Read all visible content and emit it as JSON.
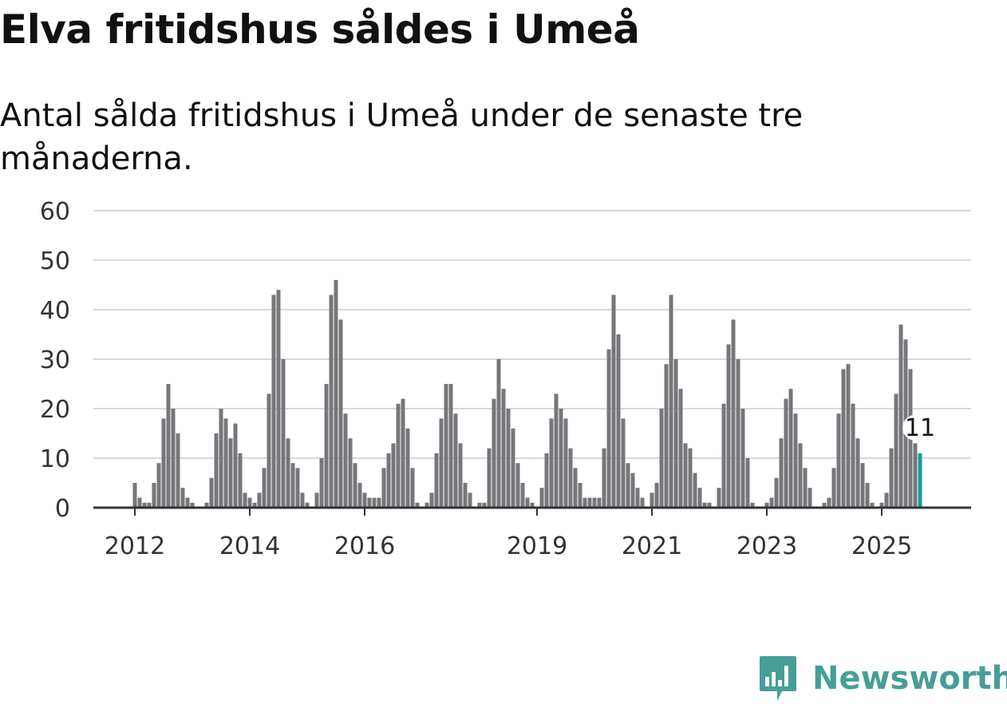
{
  "header": {
    "title": "Elva fritidshus såldes i Umeå",
    "subtitle": "Antal sålda fritidshus i Umeå under de senaste tre månaderna."
  },
  "brand": {
    "name": "Newsworthy",
    "color": "#479e98",
    "icon": "newsworthy-chart-icon"
  },
  "colors": {
    "bar": "#76767b",
    "highlight": "#1a9e92",
    "grid": "#d9d9d9",
    "axis": "#333333"
  },
  "chart_data": {
    "type": "bar",
    "start": "2011-01",
    "end": "2025-09",
    "ylim": [
      0,
      60
    ],
    "yticks": [
      0,
      10,
      20,
      30,
      40,
      50,
      60
    ],
    "xticks": [
      {
        "label": "2012",
        "date": "2012-01"
      },
      {
        "label": "2014",
        "date": "2014-01"
      },
      {
        "label": "2016",
        "date": "2016-01"
      },
      {
        "label": "2019",
        "date": "2019-01"
      },
      {
        "label": "2021",
        "date": "2021-01"
      },
      {
        "label": "2023",
        "date": "2023-01"
      },
      {
        "label": "2025",
        "date": "2025-01"
      }
    ],
    "grid": true,
    "values": [
      0,
      0,
      0,
      0,
      0,
      0,
      0,
      0,
      0,
      0,
      0,
      0,
      5,
      2,
      1,
      1,
      5,
      9,
      18,
      25,
      20,
      15,
      4,
      2,
      1,
      0,
      0,
      1,
      6,
      15,
      20,
      18,
      14,
      17,
      11,
      3,
      2,
      1,
      3,
      8,
      23,
      43,
      44,
      30,
      14,
      9,
      8,
      3,
      1,
      0,
      3,
      10,
      25,
      43,
      46,
      38,
      19,
      14,
      9,
      5,
      3,
      2,
      2,
      2,
      8,
      11,
      13,
      21,
      22,
      16,
      8,
      1,
      0,
      1,
      3,
      11,
      18,
      25,
      25,
      19,
      13,
      5,
      3,
      0,
      1,
      1,
      12,
      22,
      30,
      24,
      20,
      16,
      9,
      5,
      2,
      1,
      0,
      4,
      11,
      18,
      23,
      20,
      18,
      12,
      8,
      5,
      2,
      2,
      2,
      2,
      12,
      32,
      43,
      35,
      18,
      9,
      7,
      4,
      2,
      0,
      3,
      5,
      20,
      29,
      43,
      30,
      24,
      13,
      12,
      7,
      4,
      1,
      1,
      0,
      4,
      21,
      33,
      38,
      30,
      20,
      10,
      1,
      0,
      0,
      1,
      2,
      6,
      14,
      22,
      24,
      19,
      13,
      8,
      4,
      0,
      0,
      1,
      2,
      8,
      19,
      28,
      29,
      21,
      14,
      9,
      5,
      1,
      0,
      1,
      3,
      12,
      23,
      37,
      34,
      28,
      13,
      11
    ],
    "highlight_label": "11"
  }
}
